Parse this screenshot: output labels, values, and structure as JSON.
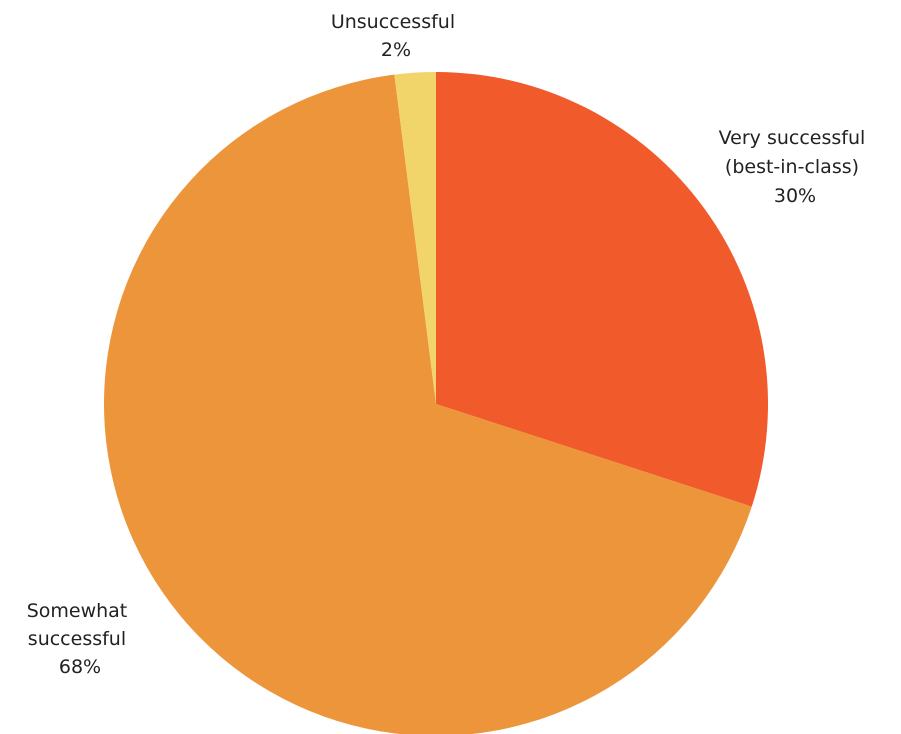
{
  "chart_data": {
    "type": "pie",
    "slices": [
      {
        "label_lines": [
          "Very successful",
          "(best-in-class)"
        ],
        "value_label": "30%",
        "value": 30,
        "color": "#F15A2B"
      },
      {
        "label_lines": [
          "Somewhat",
          "successful"
        ],
        "value_label": "68%",
        "value": 68,
        "color": "#EC953A"
      },
      {
        "label_lines": [
          "Unsuccessful"
        ],
        "value_label": "2%",
        "value": 2,
        "color": "#F2D56A"
      }
    ],
    "start_angle": "12 o'clock",
    "direction": "clockwise",
    "legend": "none"
  }
}
